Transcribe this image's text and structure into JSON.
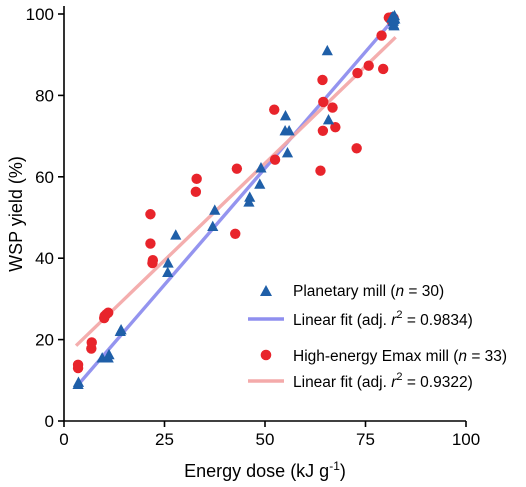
{
  "chart_data": {
    "type": "scatter",
    "xlabel": "Energy dose (kJ g",
    "xlabel_sup": "-1",
    "xlabel_end": ")",
    "ylabel": "WSP yield (%)",
    "xlim": [
      0,
      100
    ],
    "ylim": [
      0,
      100
    ],
    "xticks": [
      0,
      25,
      50,
      75,
      100
    ],
    "yticks": [
      0,
      20,
      40,
      60,
      80,
      100
    ],
    "grid": false,
    "legend_position": "bottom-right",
    "series": [
      {
        "name": "Planetary mill",
        "n_label": "n",
        "n_value": " = 30)",
        "marker": "triangle",
        "color": "#1f5fa8",
        "points": [
          [
            3.5,
            9
          ],
          [
            3.6,
            9.5
          ],
          [
            9.5,
            15.5
          ],
          [
            11,
            15.5
          ],
          [
            11.2,
            16.3
          ],
          [
            14,
            22
          ],
          [
            14.2,
            22.4
          ],
          [
            25.8,
            36.5
          ],
          [
            25.9,
            38.8
          ],
          [
            27.8,
            45.7
          ],
          [
            37,
            47.8
          ],
          [
            37.5,
            51.8
          ],
          [
            46,
            53.8
          ],
          [
            46.2,
            55
          ],
          [
            48.7,
            58.2
          ],
          [
            49,
            62.2
          ],
          [
            55,
            71.3
          ],
          [
            55.1,
            75
          ],
          [
            55.6,
            65.9
          ],
          [
            56,
            71.3
          ],
          [
            65.5,
            91
          ],
          [
            65.8,
            74
          ],
          [
            81.5,
            99
          ],
          [
            81.8,
            99.3
          ],
          [
            82,
            97.4
          ],
          [
            82,
            98.6
          ],
          [
            82.2,
            99.6
          ],
          [
            82.3,
            98.8
          ],
          [
            82.1,
            97.1
          ],
          [
            81.9,
            98.2
          ]
        ]
      },
      {
        "name": "High-energy Emax mill",
        "n_label": "n",
        "n_value": " = 33)",
        "marker": "circle",
        "color": "#e8242b",
        "points": [
          [
            3.5,
            13
          ],
          [
            3.5,
            13.8
          ],
          [
            6.8,
            17.8
          ],
          [
            6.9,
            19.3
          ],
          [
            10,
            25.3
          ],
          [
            10.1,
            25.8
          ],
          [
            10.5,
            26.2
          ],
          [
            11,
            26.6
          ],
          [
            21.5,
            43.6
          ],
          [
            21.5,
            50.8
          ],
          [
            22,
            38.8
          ],
          [
            22.1,
            39.5
          ],
          [
            32.8,
            56.3
          ],
          [
            33,
            59.5
          ],
          [
            42.6,
            46
          ],
          [
            43,
            62
          ],
          [
            52.3,
            76.5
          ],
          [
            52.5,
            64.2
          ],
          [
            63.8,
            61.5
          ],
          [
            64.3,
            83.8
          ],
          [
            64.4,
            71.3
          ],
          [
            64.5,
            78.4
          ],
          [
            66.8,
            77
          ],
          [
            67.5,
            72.2
          ],
          [
            72.8,
            67
          ],
          [
            73,
            85.5
          ],
          [
            75.8,
            87.3
          ],
          [
            79,
            94.7
          ],
          [
            79.4,
            86.5
          ],
          [
            80.8,
            99.1
          ],
          [
            81.5,
            98.3
          ],
          [
            81.6,
            99.2
          ],
          [
            82,
            99
          ]
        ]
      }
    ],
    "fits": [
      {
        "name": "Linear fit (adj. ",
        "r2_symbol": "r",
        "r2_value": " = 0.9834)",
        "color": "#8f8fef",
        "x": [
          3,
          82.5
        ],
        "y": [
          8.3,
          99.3
        ]
      },
      {
        "name": "Linear fit (adj. ",
        "r2_symbol": "r",
        "r2_value": " = 0.9322)",
        "color": "#f4aaaa",
        "x": [
          3,
          82.5
        ],
        "y": [
          18.5,
          94.3
        ]
      }
    ]
  }
}
